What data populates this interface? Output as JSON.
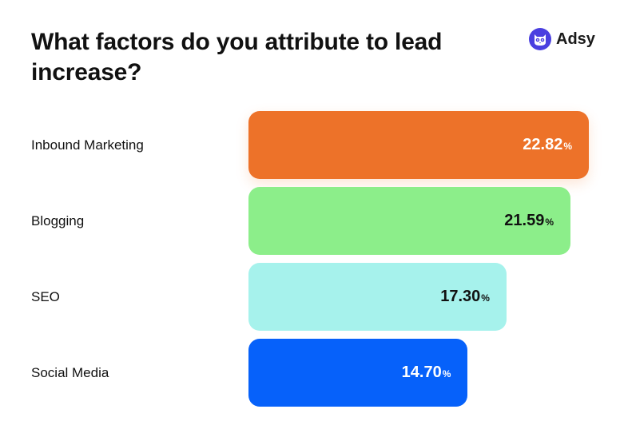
{
  "title": "What factors do you attribute to lead increase?",
  "brand": {
    "name": "Adsy",
    "icon": "owl-icon",
    "color": "#4a3fe0"
  },
  "chart_data": {
    "type": "bar",
    "orientation": "horizontal",
    "title": "What factors do you attribute to lead increase?",
    "unit": "%",
    "categories": [
      "Inbound Marketing",
      "Blogging",
      "SEO",
      "Social Media"
    ],
    "values": [
      22.82,
      21.59,
      17.3,
      14.7
    ],
    "value_labels": [
      "22.82",
      "21.59",
      "17.30",
      "14.70"
    ],
    "colors": [
      "#ed7229",
      "#8cee8a",
      "#a6f2ec",
      "#0661fa"
    ],
    "text_colors": [
      "#ffffff",
      "#111111",
      "#111111",
      "#ffffff"
    ],
    "grid": false,
    "legend": "none"
  }
}
